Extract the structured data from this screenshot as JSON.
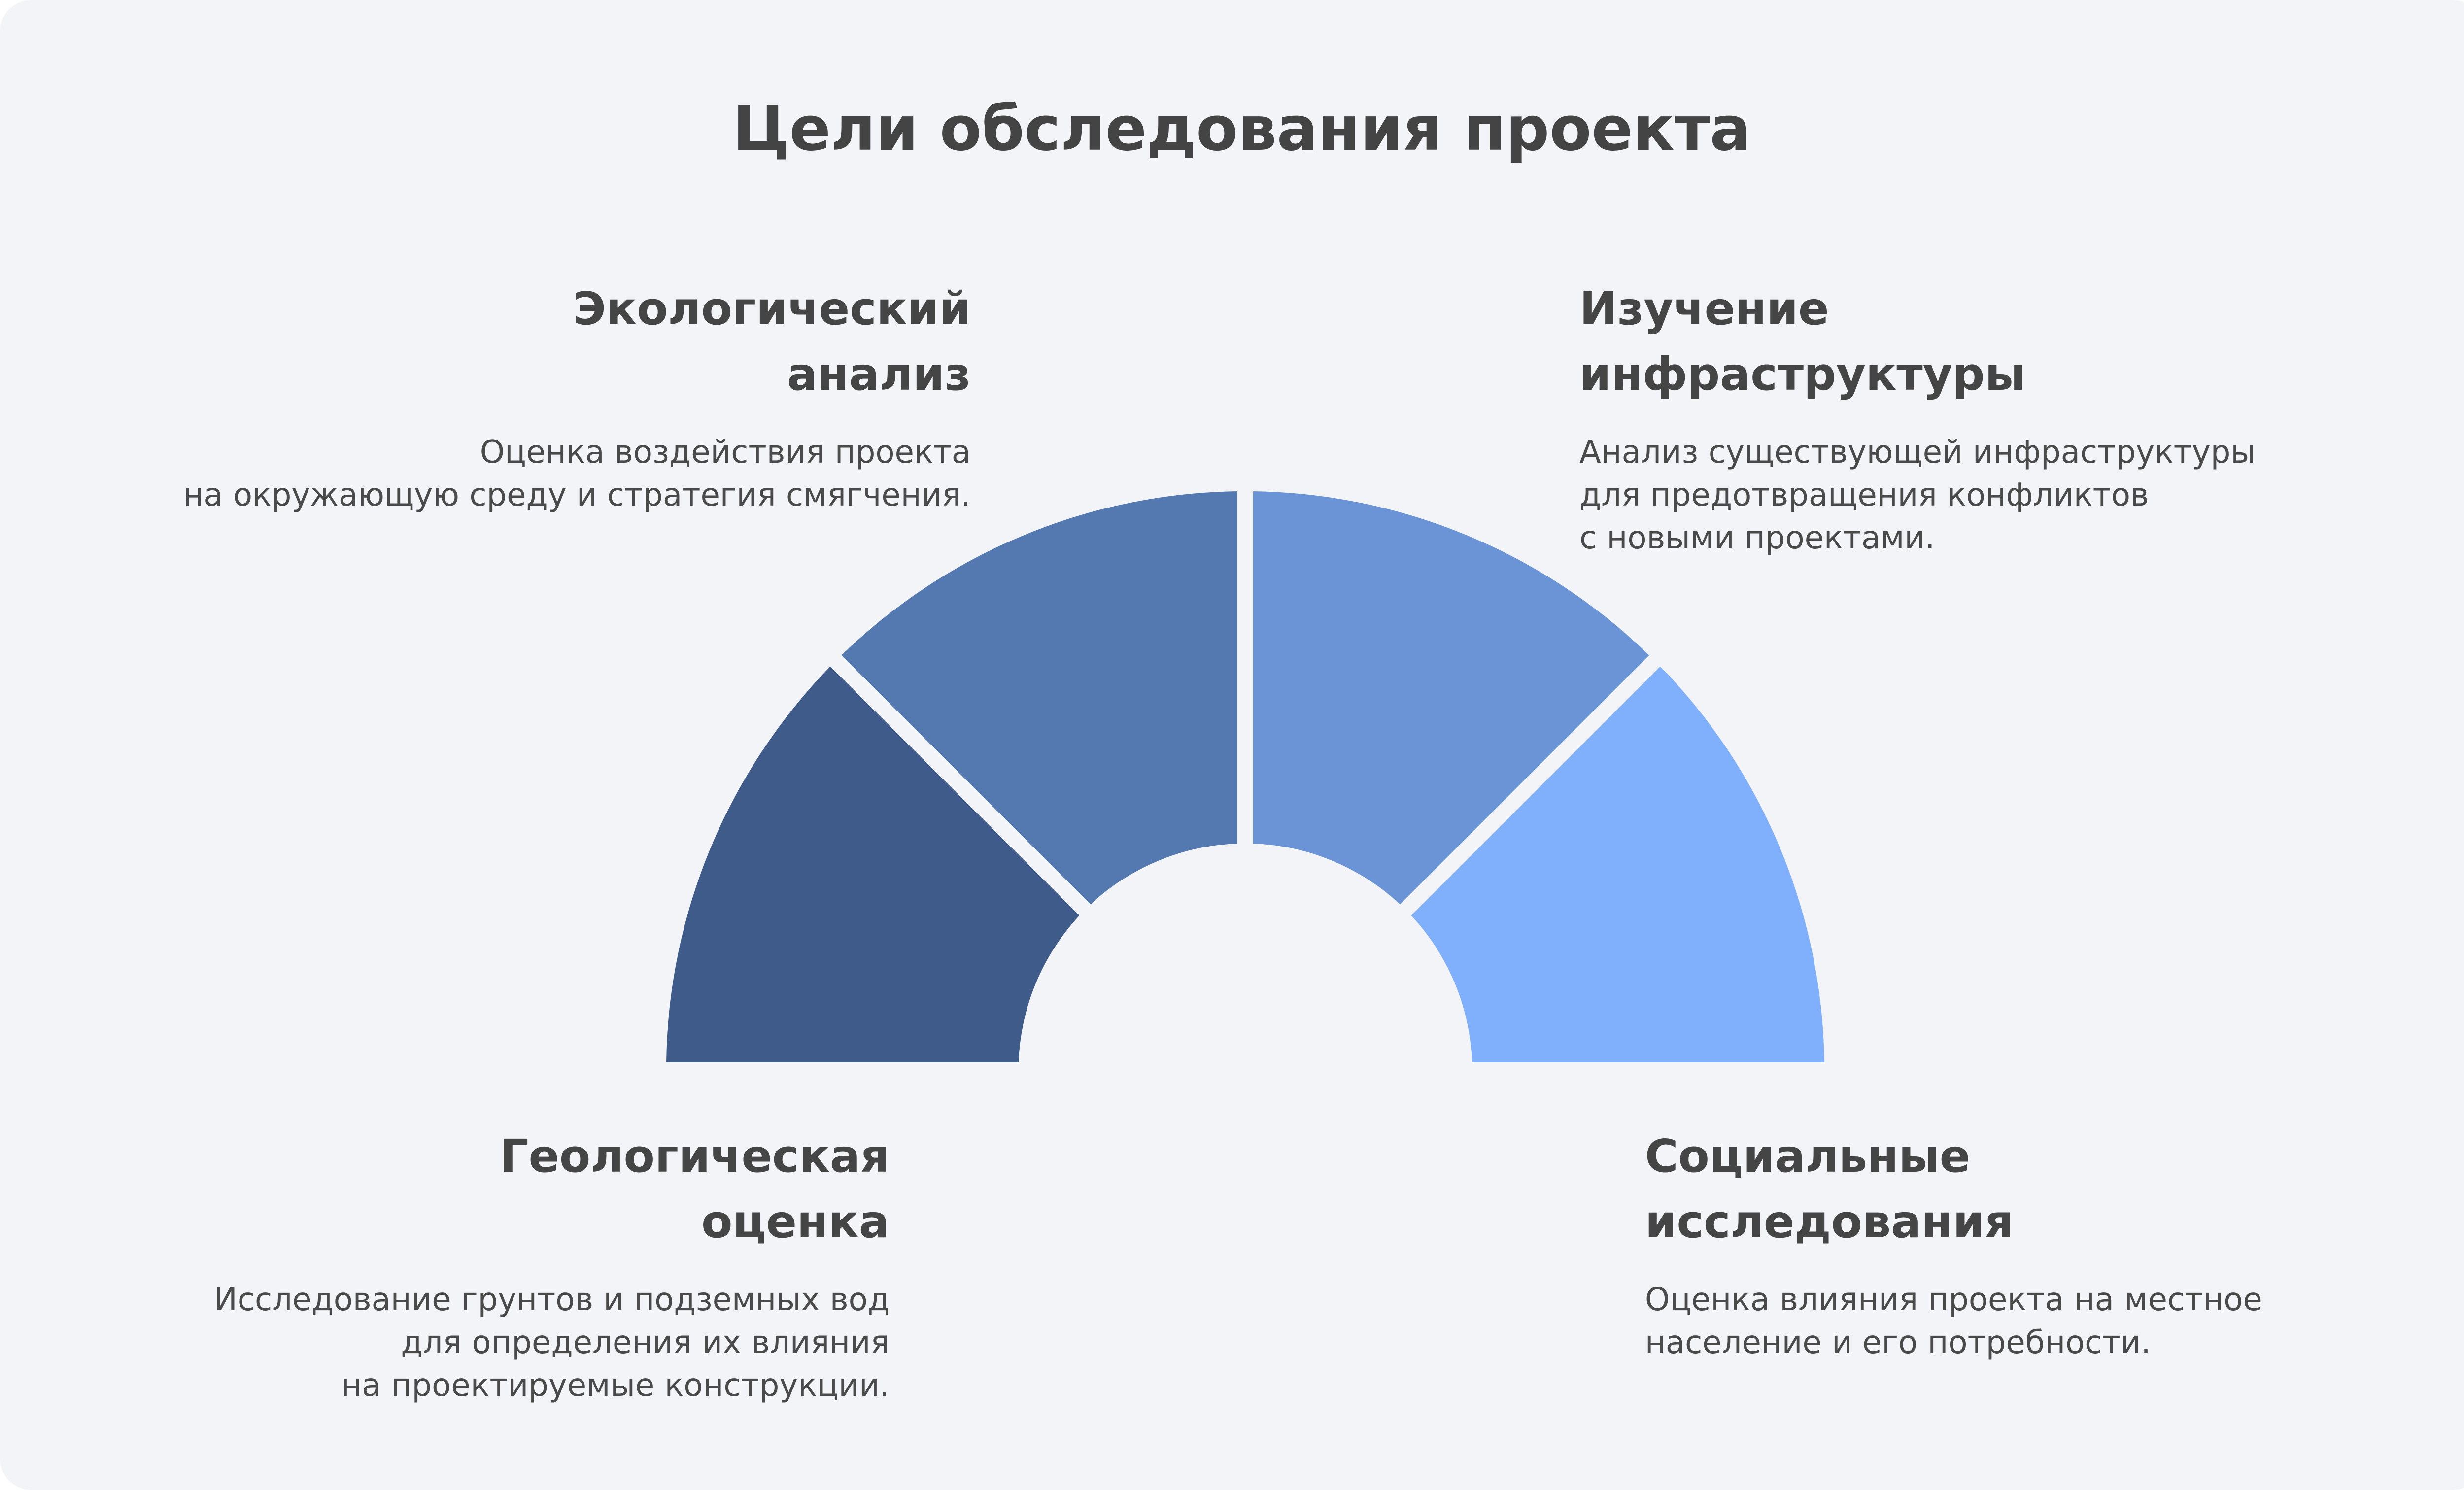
{
  "title": "Цели обследования проекта",
  "colors": {
    "background": "#f3f4f8",
    "text": "#444444",
    "segment_1": "#3f5b8a",
    "segment_2": "#5479b1",
    "segment_3": "#6a94d6",
    "segment_4": "#80b0fc"
  },
  "sections": {
    "ecological": {
      "heading": [
        "Экологический",
        "анализ"
      ],
      "description": [
        "Оценка воздействия проекта",
        "на окружающую среду и стратегия смягчения."
      ]
    },
    "infrastructure": {
      "heading": [
        "Изучение",
        "инфраструктуры"
      ],
      "description": [
        "Анализ существующей инфраструктуры",
        "для предотвращения конфликтов",
        "с новыми проектами."
      ]
    },
    "geological": {
      "heading": [
        "Геологическая",
        "оценка"
      ],
      "description": [
        "Исследование грунтов и подземных вод",
        "для определения их влияния",
        "на проектируемые конструкции."
      ]
    },
    "social": {
      "heading": [
        "Социальные",
        "исследования"
      ],
      "description": [
        "Оценка влияния проекта на местное",
        "население и его потребности."
      ]
    }
  }
}
